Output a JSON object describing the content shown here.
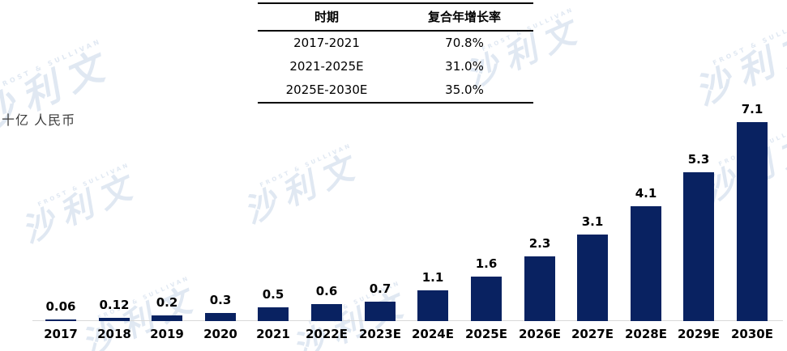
{
  "watermark": {
    "cn": "沙利文",
    "en": "FROST & SULLIVAN"
  },
  "table": {
    "headers": [
      "时期",
      "复合年增长率"
    ],
    "rows": [
      [
        "2017-2021",
        "70.8%"
      ],
      [
        "2021-2025E",
        "31.0%"
      ],
      [
        "2025E-2030E",
        "35.0%"
      ]
    ]
  },
  "chart_data": {
    "type": "bar",
    "title": "",
    "xlabel": "",
    "ylabel": "十亿 人民币",
    "categories": [
      "2017",
      "2018",
      "2019",
      "2020",
      "2021",
      "2022E",
      "2023E",
      "2024E",
      "2025E",
      "2026E",
      "2027E",
      "2028E",
      "2029E",
      "2030E"
    ],
    "values": [
      0.06,
      0.12,
      0.2,
      0.3,
      0.5,
      0.6,
      0.7,
      1.1,
      1.6,
      2.3,
      3.1,
      4.1,
      5.3,
      7.1
    ],
    "value_labels": [
      "0.06",
      "0.12",
      "0.2",
      "0.3",
      "0.5",
      "0.6",
      "0.7",
      "1.1",
      "1.6",
      "2.3",
      "3.1",
      "4.1",
      "5.3",
      "7.1"
    ],
    "ylim": [
      0,
      7.5
    ],
    "grid": false,
    "legend": false,
    "bar_color": "#092261",
    "axis_line_color": "#d9d9d9"
  }
}
